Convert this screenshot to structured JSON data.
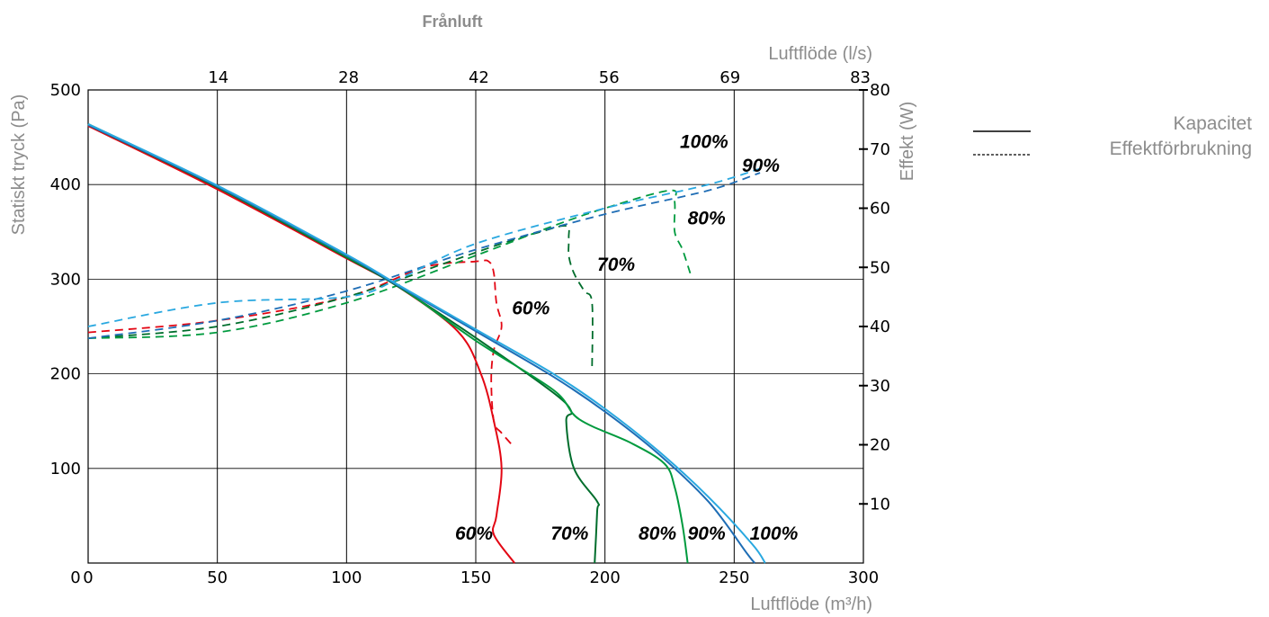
{
  "chart_data": {
    "type": "line",
    "title": "Frånluft",
    "xlabel": "Luftflöde (m³/h)",
    "x2label": "Luftflöde (l/s)",
    "ylabel": "Statiskt tryck (Pa)",
    "y2label": "Effekt (W)",
    "xlim": [
      0,
      300
    ],
    "ylim": [
      0,
      500
    ],
    "y2lim": [
      0,
      80
    ],
    "grid": true,
    "legend_position": "right",
    "x_ticks": [
      "0",
      "50",
      "100",
      "150",
      "200",
      "250",
      "300"
    ],
    "x2_ticks": [
      "14",
      "28",
      "42",
      "56",
      "69",
      "83"
    ],
    "y_ticks": [
      "100",
      "200",
      "300",
      "400",
      "500"
    ],
    "y2_ticks": [
      "10",
      "20",
      "30",
      "40",
      "50",
      "60",
      "70",
      "80"
    ],
    "legend": [
      {
        "label": "Kapacitet",
        "style": "solid"
      },
      {
        "label": "Effektförbrukning",
        "style": "dashed"
      }
    ],
    "pressure_series": [
      {
        "name": "60%",
        "color": "#e30613",
        "points": [
          [
            0,
            462
          ],
          [
            50,
            395
          ],
          [
            100,
            322
          ],
          [
            120,
            292
          ],
          [
            143,
            245
          ],
          [
            152,
            200
          ],
          [
            157,
            150
          ],
          [
            160,
            100
          ],
          [
            158,
            50
          ],
          [
            157,
            30
          ],
          [
            165,
            0
          ]
        ]
      },
      {
        "name": "70%",
        "color": "#006d2c",
        "points": [
          [
            0,
            463
          ],
          [
            50,
            397
          ],
          [
            100,
            323
          ],
          [
            120,
            292
          ],
          [
            150,
            238
          ],
          [
            180,
            180
          ],
          [
            187,
            160
          ],
          [
            185,
            150
          ],
          [
            188,
            100
          ],
          [
            197,
            65
          ],
          [
            197,
            55
          ],
          [
            196,
            0
          ]
        ]
      },
      {
        "name": "80%",
        "color": "#009a3e",
        "points": [
          [
            0,
            464
          ],
          [
            50,
            398
          ],
          [
            100,
            324
          ],
          [
            120,
            293
          ],
          [
            150,
            235
          ],
          [
            180,
            183
          ],
          [
            190,
            152
          ],
          [
            210,
            127
          ],
          [
            223,
            105
          ],
          [
            227,
            80
          ],
          [
            230,
            40
          ],
          [
            232,
            0
          ]
        ]
      },
      {
        "name": "90%",
        "color": "#1e6db5",
        "points": [
          [
            0,
            463
          ],
          [
            50,
            398
          ],
          [
            100,
            325
          ],
          [
            120,
            293
          ],
          [
            150,
            245
          ],
          [
            180,
            197
          ],
          [
            200,
            160
          ],
          [
            220,
            117
          ],
          [
            240,
            65
          ],
          [
            255,
            10
          ],
          [
            258,
            0
          ]
        ]
      },
      {
        "name": "100%",
        "color": "#29a8e0",
        "points": [
          [
            0,
            464
          ],
          [
            50,
            399
          ],
          [
            100,
            326
          ],
          [
            120,
            294
          ],
          [
            150,
            247
          ],
          [
            180,
            200
          ],
          [
            200,
            163
          ],
          [
            220,
            120
          ],
          [
            240,
            70
          ],
          [
            257,
            20
          ],
          [
            262,
            0
          ]
        ]
      }
    ],
    "power_series": [
      {
        "name": "60%",
        "color": "#e30613",
        "points": [
          [
            0,
            39
          ],
          [
            50,
            41
          ],
          [
            100,
            45
          ],
          [
            130,
            50
          ],
          [
            150,
            51
          ],
          [
            155,
            51
          ],
          [
            157,
            49
          ],
          [
            158,
            44
          ],
          [
            160,
            40
          ],
          [
            157,
            36
          ],
          [
            156,
            31
          ],
          [
            157,
            24
          ],
          [
            160,
            22
          ],
          [
            164,
            20
          ]
        ]
      },
      {
        "name": "70%",
        "color": "#006d2c",
        "points": [
          [
            0,
            38
          ],
          [
            50,
            40
          ],
          [
            100,
            45
          ],
          [
            140,
            51
          ],
          [
            160,
            54
          ],
          [
            175,
            56
          ],
          [
            185,
            57
          ],
          [
            186,
            55
          ],
          [
            186,
            52
          ],
          [
            188,
            49
          ],
          [
            192,
            46
          ],
          [
            195,
            44
          ],
          [
            195,
            33
          ]
        ]
      },
      {
        "name": "80%",
        "color": "#009a3e",
        "points": [
          [
            0,
            38
          ],
          [
            50,
            39
          ],
          [
            100,
            44
          ],
          [
            150,
            52
          ],
          [
            180,
            57
          ],
          [
            200,
            60
          ],
          [
            225,
            63
          ],
          [
            227,
            61
          ],
          [
            227,
            56
          ],
          [
            230,
            53
          ],
          [
            233,
            49
          ]
        ]
      },
      {
        "name": "90%",
        "color": "#1e6db5",
        "points": [
          [
            0,
            38
          ],
          [
            50,
            41
          ],
          [
            100,
            46
          ],
          [
            150,
            53
          ],
          [
            200,
            59
          ],
          [
            240,
            63
          ],
          [
            260,
            66
          ]
        ]
      },
      {
        "name": "100%",
        "color": "#29a8e0",
        "points": [
          [
            0,
            40
          ],
          [
            50,
            44
          ],
          [
            100,
            45
          ],
          [
            120,
            48
          ],
          [
            150,
            54
          ],
          [
            200,
            60
          ],
          [
            240,
            64
          ],
          [
            262,
            67
          ]
        ]
      }
    ],
    "annotations": [
      {
        "text": "60%",
        "x": 142,
        "y": 0
      },
      {
        "text": "70%",
        "x": 179,
        "y": 0
      },
      {
        "text": "80%",
        "x": 213,
        "y": 0
      },
      {
        "text": "90%",
        "x": 232,
        "y": 0
      },
      {
        "text": "100%",
        "x": 256,
        "y": 0
      },
      {
        "text": "60%",
        "x": 164,
        "y": 238
      },
      {
        "text": "70%",
        "x": 197,
        "y": 284
      },
      {
        "text": "80%",
        "x": 232,
        "y": 333
      },
      {
        "text": "90%",
        "x": 253,
        "y": 389
      },
      {
        "text": "100%",
        "x": 229,
        "y": 414
      }
    ]
  }
}
